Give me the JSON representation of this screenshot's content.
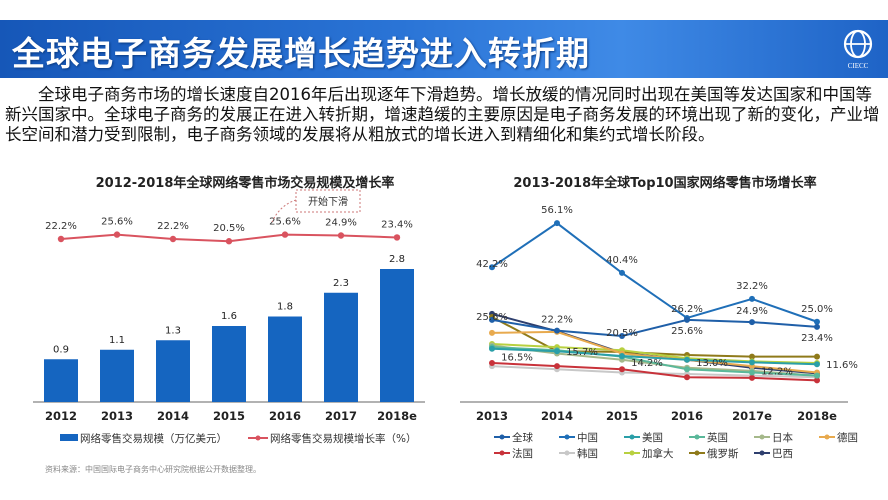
{
  "header": {
    "title": "全球电子商务发展增长趋势进入转折期",
    "logo_text": "CIECC"
  },
  "intro": "全球电子商务市场的增长速度自2016年后出现逐年下滑趋势。增长放缓的情况同时出现在美国等发达国家和中国等新兴国家中。全球电子商务的发展正在进入转折期，增速趋缓的主要原因是电子商务发展的环境出现了新的变化，产业增长空间和潜力受到限制，电子商务领域的发展将从粗放式的增长进入到精细化和集约式增长阶段。",
  "source": "资料来源：中国国际电子商务中心研究院根据公开数据整理。",
  "chart_data": [
    {
      "type": "bar+line",
      "title": "2012-2018年全球网络零售市场交易规模及增长率",
      "categories": [
        "2012",
        "2013",
        "2014",
        "2015",
        "2016",
        "2017",
        "2018e"
      ],
      "series": [
        {
          "name": "网络零售交易规模（万亿美元）",
          "type": "bar",
          "color": "#1565c0",
          "values": [
            0.9,
            1.1,
            1.3,
            1.6,
            1.8,
            2.3,
            2.8
          ],
          "labels": [
            "0.9",
            "1.1",
            "1.3",
            "1.6",
            "1.8",
            "2.3",
            "2.8"
          ]
        },
        {
          "name": "网络零售交易规模增长率（%）",
          "type": "line",
          "color": "#d9535f",
          "values": [
            22.2,
            25.6,
            22.2,
            20.5,
            25.6,
            24.9,
            23.4
          ],
          "labels": [
            "22.2%",
            "25.6%",
            "22.2%",
            "20.5%",
            "25.6%",
            "24.9%",
            "23.4%"
          ]
        }
      ],
      "annotation": "开始下滑",
      "legend": "bottom"
    },
    {
      "type": "line",
      "title": "2013-2018年全球Top10国家网络零售市场增长率",
      "categories": [
        "2013",
        "2014",
        "2015",
        "2016",
        "2017e",
        "2018e"
      ],
      "ylim": [
        0,
        60
      ],
      "legend": "bottom",
      "series": [
        {
          "name": "全球",
          "color": "#1f5fa8",
          "values": [
            25.6,
            22.2,
            20.5,
            25.6,
            24.9,
            23.4
          ],
          "labels": [
            "25.6%",
            "22.2%",
            "20.5%",
            "25.6%",
            "24.9%",
            "23.4%"
          ]
        },
        {
          "name": "中国",
          "color": "#1f6fb8",
          "values": [
            42.2,
            56.1,
            40.4,
            26.2,
            32.2,
            25.0
          ],
          "labels": [
            "42.2%",
            "56.1%",
            "40.4%",
            "26.2%",
            "32.2%",
            "25.0%"
          ]
        },
        {
          "name": "美国",
          "color": "#2a9fa8",
          "values": [
            16.5,
            15.7,
            14.2,
            13.0,
            12.2,
            11.6
          ],
          "labels": [
            "16.5%",
            "15.7%",
            "14.2%",
            "13.0%",
            "12.2%",
            "11.6%"
          ]
        },
        {
          "name": "英国",
          "color": "#5ab89a",
          "values": [
            17,
            16,
            14,
            10,
            9,
            8
          ]
        },
        {
          "name": "日本",
          "color": "#a5b88a",
          "values": [
            17.5,
            15,
            13,
            10.5,
            9.5,
            8
          ]
        },
        {
          "name": "德国",
          "color": "#e8aa4e",
          "values": [
            21.5,
            21.8,
            15,
            13,
            11,
            9
          ]
        },
        {
          "name": "法国",
          "color": "#c8323a",
          "values": [
            12,
            11,
            10,
            7.5,
            7.3,
            6.5
          ]
        },
        {
          "name": "韩国",
          "color": "#c8c8c8",
          "values": [
            11,
            10,
            9,
            8.5,
            8,
            7.5
          ]
        },
        {
          "name": "加拿大",
          "color": "#b8d040",
          "values": [
            18,
            17,
            16,
            13.5,
            12.5,
            12
          ]
        },
        {
          "name": "俄罗斯",
          "color": "#8f7a1a",
          "values": [
            26.5,
            15.7,
            15.5,
            14.5,
            14,
            14
          ]
        },
        {
          "name": "巴西",
          "color": "#2e3f6e",
          "values": [
            27.5,
            22,
            15.2,
            13,
            10.5,
            8.7
          ]
        }
      ]
    }
  ]
}
